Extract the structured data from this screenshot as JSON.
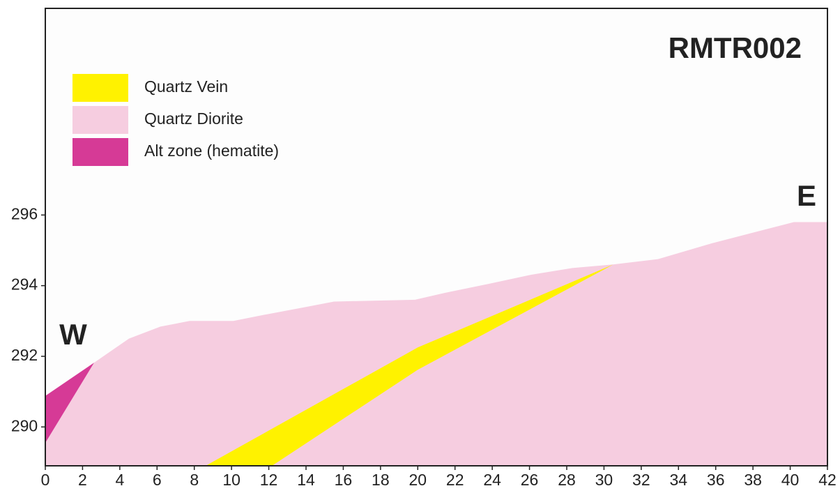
{
  "chart_data": {
    "type": "polygon",
    "title": "RMTR002",
    "west_label": "W",
    "east_label": "E",
    "xlim": [
      0,
      42
    ],
    "ylim": [
      288.9,
      301.85
    ],
    "xticks": [
      0,
      2,
      4,
      6,
      8,
      10,
      12,
      14,
      16,
      18,
      20,
      22,
      24,
      26,
      28,
      30,
      32,
      34,
      36,
      38,
      40,
      42
    ],
    "yticks": [
      290,
      292,
      294,
      296
    ],
    "series": [
      {
        "name": "Quartz Vein",
        "color": "#fff200",
        "x": [
          8.61,
          20.0,
          30.5,
          20.0,
          12.17
        ],
        "values": [
          288.9,
          292.25,
          294.6,
          291.62,
          288.9
        ]
      },
      {
        "name": "Quartz Diorite",
        "color": "#f6cde0",
        "x": [
          0,
          2.62,
          4.49,
          6.18,
          7.75,
          10.1,
          11.6,
          14.04,
          15.5,
          19.85,
          21.5,
          23.8,
          26.0,
          28.3,
          30.5,
          32.9,
          35.8,
          38.0,
          40.2,
          42,
          42,
          0
        ],
        "values": [
          289.55,
          291.82,
          292.5,
          292.84,
          293.0,
          293.0,
          293.16,
          293.4,
          293.55,
          293.6,
          293.8,
          294.05,
          294.3,
          294.5,
          294.6,
          294.75,
          295.2,
          295.5,
          295.8,
          295.8,
          288.9,
          288.9
        ]
      },
      {
        "name": "Alt zone (hematite)",
        "color": "#d63a96",
        "x": [
          0,
          2.62,
          0
        ],
        "values": [
          290.88,
          291.82,
          289.55
        ]
      }
    ]
  }
}
